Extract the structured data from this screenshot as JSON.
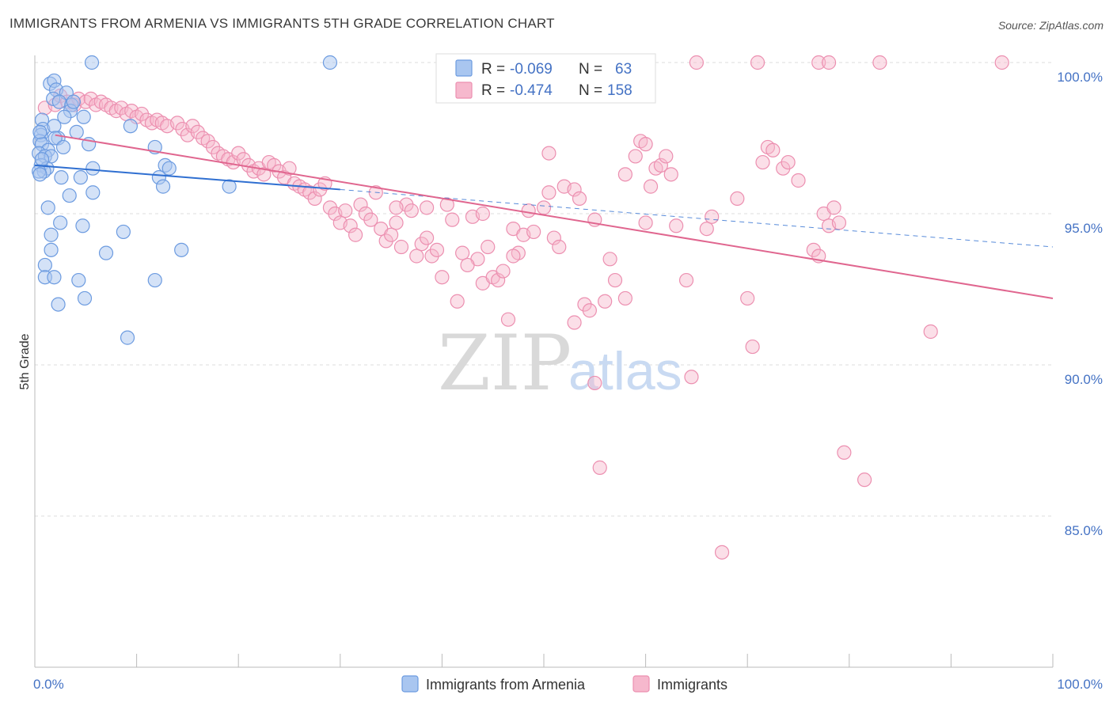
{
  "title": "IMMIGRANTS FROM ARMENIA VS IMMIGRANTS 5TH GRADE CORRELATION CHART",
  "source": "Source: ZipAtlas.com",
  "watermark": {
    "zip": "ZIP",
    "atlas": "atlas"
  },
  "colors": {
    "blue_fill": "#a9c6f0",
    "blue_stroke": "#6c9be0",
    "blue_line": "#2f6fd1",
    "pink_fill": "#f6b8cd",
    "pink_stroke": "#ec8fb0",
    "pink_line": "#e0668f",
    "axis_text": "#4472c4",
    "grid": "#dddddd"
  },
  "legend": {
    "r_label": "R =",
    "n_label": "N =",
    "series_a": {
      "r": "-0.069",
      "n": "63"
    },
    "series_b": {
      "r": "-0.474",
      "n": "158"
    }
  },
  "bottom_legend": {
    "a": "Immigrants from Armenia",
    "b": "Immigrants"
  },
  "chart_data": {
    "type": "scatter",
    "title": "IMMIGRANTS FROM ARMENIA VS IMMIGRANTS 5TH GRADE CORRELATION CHART",
    "xlabel": "",
    "ylabel": "5th Grade",
    "xlim": [
      0,
      100
    ],
    "ylim": [
      80.5,
      100.5
    ],
    "x_tick_labels": [
      "0.0%",
      "100.0%"
    ],
    "y_ticks": [
      85,
      90,
      95,
      100
    ],
    "y_tick_labels": [
      "85.0%",
      "90.0%",
      "95.0%",
      "100.0%"
    ],
    "grid": true,
    "legend_position": "top-center",
    "series": [
      {
        "name": "Immigrants from Armenia",
        "color": "#a9c6f0",
        "R": -0.069,
        "N": 63,
        "trend": {
          "x": [
            0,
            30
          ],
          "y": [
            96.6,
            95.8
          ],
          "dashed_to": [
            100,
            93.9
          ]
        },
        "points": [
          [
            5.6,
            100
          ],
          [
            29,
            100
          ],
          [
            1.5,
            99.3
          ],
          [
            1.9,
            99.4
          ],
          [
            2.1,
            99.1
          ],
          [
            3.1,
            99.0
          ],
          [
            1.8,
            98.8
          ],
          [
            2.4,
            98.7
          ],
          [
            3.6,
            98.6
          ],
          [
            3.5,
            98.4
          ],
          [
            0.7,
            98.1
          ],
          [
            4.8,
            98.2
          ],
          [
            2.9,
            98.2
          ],
          [
            0.8,
            97.8
          ],
          [
            1.9,
            97.9
          ],
          [
            9.4,
            97.9
          ],
          [
            0.6,
            97.6
          ],
          [
            4.1,
            97.7
          ],
          [
            2.3,
            97.5
          ],
          [
            0.5,
            97.4
          ],
          [
            0.7,
            97.3
          ],
          [
            1.3,
            97.1
          ],
          [
            5.3,
            97.3
          ],
          [
            11.8,
            97.2
          ],
          [
            0.4,
            97.0
          ],
          [
            1.0,
            96.9
          ],
          [
            1.6,
            96.9
          ],
          [
            0.6,
            96.6
          ],
          [
            1.2,
            96.5
          ],
          [
            0.9,
            96.4
          ],
          [
            0.4,
            96.4
          ],
          [
            5.7,
            96.5
          ],
          [
            12.8,
            96.6
          ],
          [
            13.2,
            96.5
          ],
          [
            0.5,
            96.3
          ],
          [
            2.6,
            96.2
          ],
          [
            4.5,
            96.2
          ],
          [
            12.2,
            96.2
          ],
          [
            12.6,
            95.9
          ],
          [
            19.1,
            95.9
          ],
          [
            3.4,
            95.6
          ],
          [
            5.7,
            95.7
          ],
          [
            1.3,
            95.2
          ],
          [
            2.5,
            94.7
          ],
          [
            4.7,
            94.6
          ],
          [
            8.7,
            94.4
          ],
          [
            1.6,
            94.3
          ],
          [
            1.6,
            93.8
          ],
          [
            7.0,
            93.7
          ],
          [
            14.4,
            93.8
          ],
          [
            1.0,
            93.3
          ],
          [
            1.0,
            92.9
          ],
          [
            1.9,
            92.9
          ],
          [
            4.3,
            92.8
          ],
          [
            11.8,
            92.8
          ],
          [
            4.9,
            92.2
          ],
          [
            2.3,
            92.0
          ],
          [
            9.1,
            90.9
          ],
          [
            0.7,
            96.8
          ],
          [
            2.0,
            97.5
          ],
          [
            0.5,
            97.7
          ],
          [
            2.8,
            97.2
          ],
          [
            3.8,
            98.7
          ]
        ]
      },
      {
        "name": "Immigrants",
        "color": "#f6b8cd",
        "R": -0.474,
        "N": 158,
        "trend": {
          "x": [
            2,
            100
          ],
          "y": [
            97.6,
            92.2
          ]
        },
        "points": [
          [
            65,
            100
          ],
          [
            71,
            100
          ],
          [
            77,
            100
          ],
          [
            78,
            100
          ],
          [
            83,
            100
          ],
          [
            95,
            100
          ],
          [
            1.0,
            98.5
          ],
          [
            2.0,
            98.6
          ],
          [
            2.5,
            98.9
          ],
          [
            3.2,
            98.7
          ],
          [
            3.9,
            98.6
          ],
          [
            4.3,
            98.8
          ],
          [
            5.0,
            98.7
          ],
          [
            5.5,
            98.8
          ],
          [
            6.0,
            98.6
          ],
          [
            6.5,
            98.7
          ],
          [
            7.0,
            98.6
          ],
          [
            7.5,
            98.5
          ],
          [
            8.0,
            98.4
          ],
          [
            8.5,
            98.5
          ],
          [
            9.0,
            98.3
          ],
          [
            9.5,
            98.4
          ],
          [
            10.0,
            98.2
          ],
          [
            10.5,
            98.3
          ],
          [
            11.0,
            98.1
          ],
          [
            11.5,
            98.0
          ],
          [
            12.0,
            98.1
          ],
          [
            12.5,
            98.0
          ],
          [
            13.0,
            97.9
          ],
          [
            14.0,
            98.0
          ],
          [
            14.5,
            97.8
          ],
          [
            15.0,
            97.6
          ],
          [
            15.5,
            97.9
          ],
          [
            16.0,
            97.7
          ],
          [
            16.5,
            97.5
          ],
          [
            17.0,
            97.4
          ],
          [
            17.5,
            97.2
          ],
          [
            18.0,
            97.0
          ],
          [
            18.5,
            96.9
          ],
          [
            19.0,
            96.8
          ],
          [
            19.5,
            96.7
          ],
          [
            20.0,
            97.0
          ],
          [
            20.5,
            96.8
          ],
          [
            21.0,
            96.6
          ],
          [
            21.5,
            96.4
          ],
          [
            22.0,
            96.5
          ],
          [
            22.5,
            96.3
          ],
          [
            23.0,
            96.7
          ],
          [
            23.5,
            96.6
          ],
          [
            24.0,
            96.4
          ],
          [
            24.5,
            96.2
          ],
          [
            25.0,
            96.5
          ],
          [
            25.5,
            96.0
          ],
          [
            26.0,
            95.9
          ],
          [
            26.5,
            95.8
          ],
          [
            27.0,
            95.7
          ],
          [
            27.5,
            95.5
          ],
          [
            28.0,
            95.8
          ],
          [
            28.5,
            96.0
          ],
          [
            29.0,
            95.2
          ],
          [
            29.5,
            95.0
          ],
          [
            30.0,
            94.7
          ],
          [
            30.5,
            95.1
          ],
          [
            31.0,
            94.6
          ],
          [
            31.5,
            94.3
          ],
          [
            32.0,
            95.3
          ],
          [
            32.5,
            95.0
          ],
          [
            33.0,
            94.8
          ],
          [
            33.5,
            95.7
          ],
          [
            34.0,
            94.5
          ],
          [
            34.5,
            94.1
          ],
          [
            35.0,
            94.3
          ],
          [
            35.5,
            94.7
          ],
          [
            36.0,
            93.9
          ],
          [
            36.5,
            95.3
          ],
          [
            37.0,
            95.1
          ],
          [
            37.5,
            93.6
          ],
          [
            38.0,
            94.0
          ],
          [
            38.5,
            94.2
          ],
          [
            39.0,
            93.6
          ],
          [
            39.5,
            93.8
          ],
          [
            40.0,
            92.9
          ],
          [
            40.5,
            95.3
          ],
          [
            41.0,
            94.8
          ],
          [
            41.5,
            92.1
          ],
          [
            42.0,
            93.7
          ],
          [
            43.0,
            94.9
          ],
          [
            43.5,
            93.5
          ],
          [
            44.0,
            92.7
          ],
          [
            44.5,
            93.9
          ],
          [
            45.0,
            92.9
          ],
          [
            45.5,
            92.8
          ],
          [
            46.0,
            93.1
          ],
          [
            46.5,
            91.5
          ],
          [
            47.0,
            94.5
          ],
          [
            47.5,
            93.7
          ],
          [
            48.0,
            94.3
          ],
          [
            48.5,
            95.1
          ],
          [
            49.0,
            94.4
          ],
          [
            50.0,
            95.2
          ],
          [
            50.5,
            95.7
          ],
          [
            51.0,
            94.2
          ],
          [
            51.5,
            93.9
          ],
          [
            52.0,
            95.9
          ],
          [
            53.0,
            95.8
          ],
          [
            53.5,
            95.5
          ],
          [
            54.0,
            92.0
          ],
          [
            54.5,
            91.8
          ],
          [
            55.0,
            89.4
          ],
          [
            55.5,
            86.6
          ],
          [
            56.5,
            93.5
          ],
          [
            57.0,
            92.8
          ],
          [
            58.0,
            92.2
          ],
          [
            59.0,
            96.9
          ],
          [
            59.5,
            97.4
          ],
          [
            60.0,
            97.3
          ],
          [
            61.0,
            96.5
          ],
          [
            61.5,
            96.6
          ],
          [
            62.0,
            96.9
          ],
          [
            62.5,
            96.3
          ],
          [
            63.0,
            94.6
          ],
          [
            64.0,
            92.8
          ],
          [
            64.5,
            89.6
          ],
          [
            66.0,
            94.5
          ],
          [
            66.5,
            94.9
          ],
          [
            69.0,
            95.5
          ],
          [
            70.0,
            92.2
          ],
          [
            70.5,
            90.6
          ],
          [
            71.5,
            96.7
          ],
          [
            72.0,
            97.2
          ],
          [
            72.5,
            97.1
          ],
          [
            73.5,
            96.5
          ],
          [
            74.0,
            96.7
          ],
          [
            75.0,
            96.1
          ],
          [
            76.5,
            93.8
          ],
          [
            77.0,
            93.6
          ],
          [
            77.5,
            95.0
          ],
          [
            78.0,
            94.6
          ],
          [
            78.5,
            95.2
          ],
          [
            79.0,
            94.7
          ],
          [
            79.5,
            87.1
          ],
          [
            81.5,
            86.2
          ],
          [
            88.0,
            91.1
          ],
          [
            67.5,
            83.8
          ],
          [
            53.0,
            91.4
          ],
          [
            60.5,
            95.9
          ],
          [
            50.5,
            97.0
          ],
          [
            58.0,
            96.3
          ],
          [
            55.0,
            94.8
          ],
          [
            60.0,
            94.7
          ],
          [
            44.0,
            95.0
          ],
          [
            42.5,
            93.3
          ],
          [
            47.0,
            93.6
          ],
          [
            56.0,
            92.1
          ],
          [
            38.5,
            95.2
          ],
          [
            35.5,
            95.2
          ]
        ]
      }
    ]
  }
}
